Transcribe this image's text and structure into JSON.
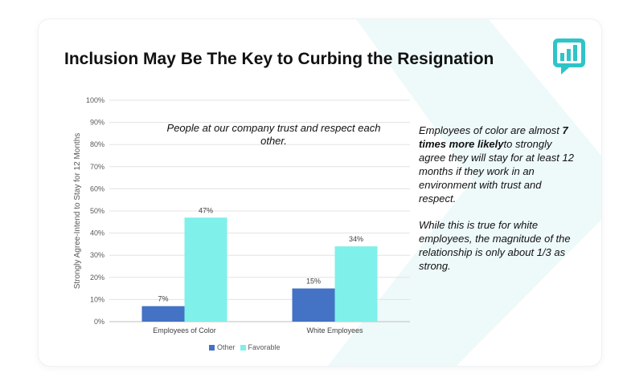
{
  "slide": {
    "title": "Inclusion May Be The Key to Curbing the Resignation",
    "logo_icon": "chat-bar-chart-logo-icon"
  },
  "chart_data": {
    "type": "bar",
    "categories": [
      "Employees of Color",
      "White Employees"
    ],
    "series": [
      {
        "name": "Other",
        "values": [
          7,
          15
        ],
        "labels": [
          "7%",
          "15%"
        ],
        "color": "#4472c4"
      },
      {
        "name": "Favorable",
        "values": [
          47,
          34
        ],
        "labels": [
          "47%",
          "34%"
        ],
        "color": "#7ff0ea"
      }
    ],
    "ylabel": "Strongly Agree-Intend to Stay for 12 Months",
    "xlabel": "",
    "ylim": [
      0,
      100
    ],
    "yticks": [
      "0%",
      "10%",
      "20%",
      "30%",
      "40%",
      "50%",
      "60%",
      "70%",
      "80%",
      "90%",
      "100%"
    ],
    "grid": true,
    "legend_position": "bottom",
    "annotation": "People at our company trust and respect each other."
  },
  "side_text": {
    "p1_pre": "Employees of color are almost ",
    "p1_bold": "7 times more likely",
    "p1_post": "to strongly agree they will stay for at least 12 months if they work in an environment with trust and respect.",
    "p2": "While this is true for white employees, the magnitude of the relationship is only about 1/3 as strong."
  },
  "colors": {
    "other": "#4472c4",
    "favorable": "#7ff0ea",
    "accent_logo": "#2ec4c8",
    "background_shape": "#eef9f9"
  }
}
